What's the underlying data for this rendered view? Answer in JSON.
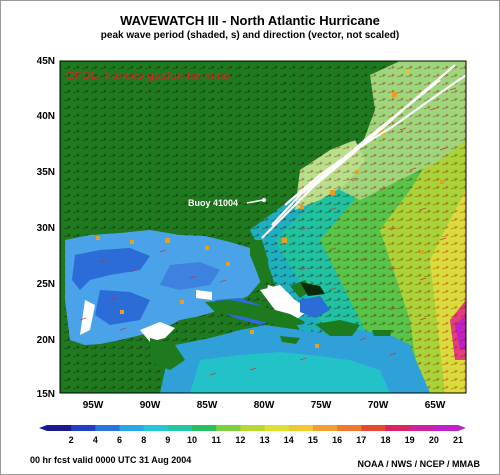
{
  "header": {
    "title": "WAVEWATCH III - North Atlantic Hurricane",
    "subtitle": "peak wave period (shaded, s) and direction (vector, not scaled)"
  },
  "map": {
    "overlay_label": "GFDL: frances gaston hermine",
    "buoy_label": "Buoy 41004",
    "lat_labels": [
      "45N",
      "40N",
      "35N",
      "30N",
      "25N",
      "20N",
      "15N"
    ],
    "lon_labels": [
      "95W",
      "90W",
      "85W",
      "80W",
      "75W",
      "70W",
      "65W"
    ],
    "colors": {
      "land": "#1e7a1e",
      "ocean_shallow_blue": "#2b6cd6",
      "track_line": "#ffffff",
      "overlay_text": "#e02020"
    }
  },
  "colorbar": {
    "ticks": [
      "2",
      "4",
      "6",
      "8",
      "9",
      "10",
      "11",
      "12",
      "13",
      "14",
      "15",
      "16",
      "17",
      "18",
      "19",
      "20",
      "21"
    ],
    "colors": [
      "#1a1a8c",
      "#2040c8",
      "#2a74e0",
      "#27a8e6",
      "#22c8d8",
      "#20c8a8",
      "#28c060",
      "#7cd040",
      "#b8d830",
      "#e0e030",
      "#f0c830",
      "#f0a030",
      "#f07830",
      "#e84830",
      "#e02060",
      "#d020a0",
      "#c020c8"
    ]
  },
  "footer": {
    "valid": "00 hr fcst valid 0000 UTC  31 Aug 2004",
    "credit": "NOAA / NWS / NCEP / MMAB"
  }
}
